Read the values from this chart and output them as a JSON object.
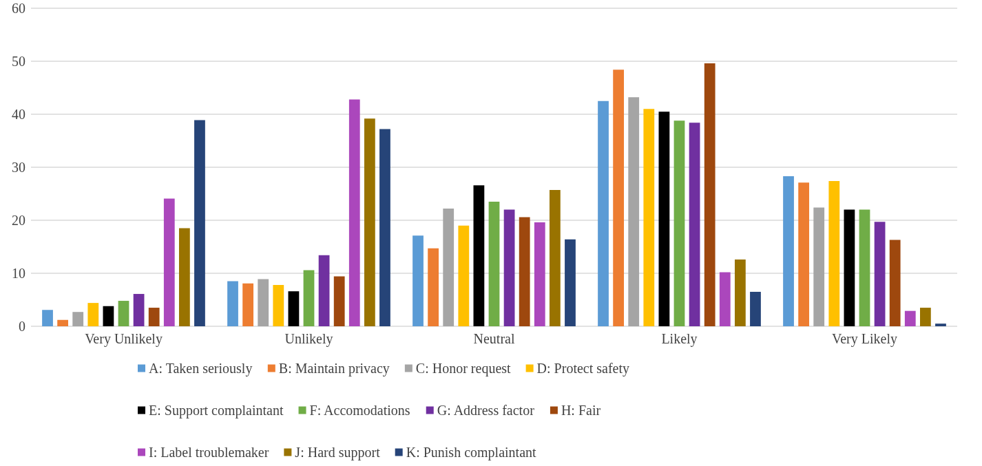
{
  "chart_data": {
    "type": "bar",
    "categories": [
      "Very Unlikely",
      "Unlikely",
      "Neutral",
      "Likely",
      "Very Likely"
    ],
    "series": [
      {
        "name": "A: Taken seriously",
        "color": "#5b9bd5",
        "values": [
          3.1,
          8.5,
          17.1,
          42.5,
          28.3
        ]
      },
      {
        "name": "B: Maintain privacy",
        "color": "#ed7d31",
        "values": [
          1.2,
          8.1,
          14.7,
          48.4,
          27.1
        ]
      },
      {
        "name": "C: Honor request",
        "color": "#a5a5a5",
        "values": [
          2.7,
          8.9,
          22.2,
          43.2,
          22.4
        ]
      },
      {
        "name": "D: Protect safety",
        "color": "#ffc000",
        "values": [
          4.4,
          7.8,
          19.0,
          41.0,
          27.4
        ]
      },
      {
        "name": "E: Support complaintant",
        "color": "#000000",
        "values": [
          3.8,
          6.6,
          26.6,
          40.5,
          22.0
        ]
      },
      {
        "name": "F: Accomodations",
        "color": "#70ad47",
        "values": [
          4.8,
          10.6,
          23.5,
          38.8,
          22.0
        ]
      },
      {
        "name": "G: Address factor",
        "color": "#7030a0",
        "values": [
          6.1,
          13.4,
          22.0,
          38.4,
          19.7
        ]
      },
      {
        "name": "H: Fair",
        "color": "#9e480e",
        "values": [
          3.5,
          9.4,
          20.6,
          49.6,
          16.3
        ]
      },
      {
        "name": "I: Label troublemaker",
        "color": "#ab47bc",
        "values": [
          24.1,
          42.8,
          19.6,
          10.2,
          2.9
        ]
      },
      {
        "name": "J: Hard support",
        "color": "#997300",
        "values": [
          18.5,
          39.2,
          25.7,
          12.6,
          3.5
        ]
      },
      {
        "name": "K: Punish complaintant",
        "color": "#264478",
        "values": [
          38.9,
          37.2,
          16.4,
          6.5,
          0.5
        ]
      }
    ],
    "ylim": [
      0,
      60
    ],
    "yticks": [
      0,
      10,
      20,
      30,
      40,
      50,
      60
    ],
    "grid": "y",
    "legend": "bottom"
  }
}
